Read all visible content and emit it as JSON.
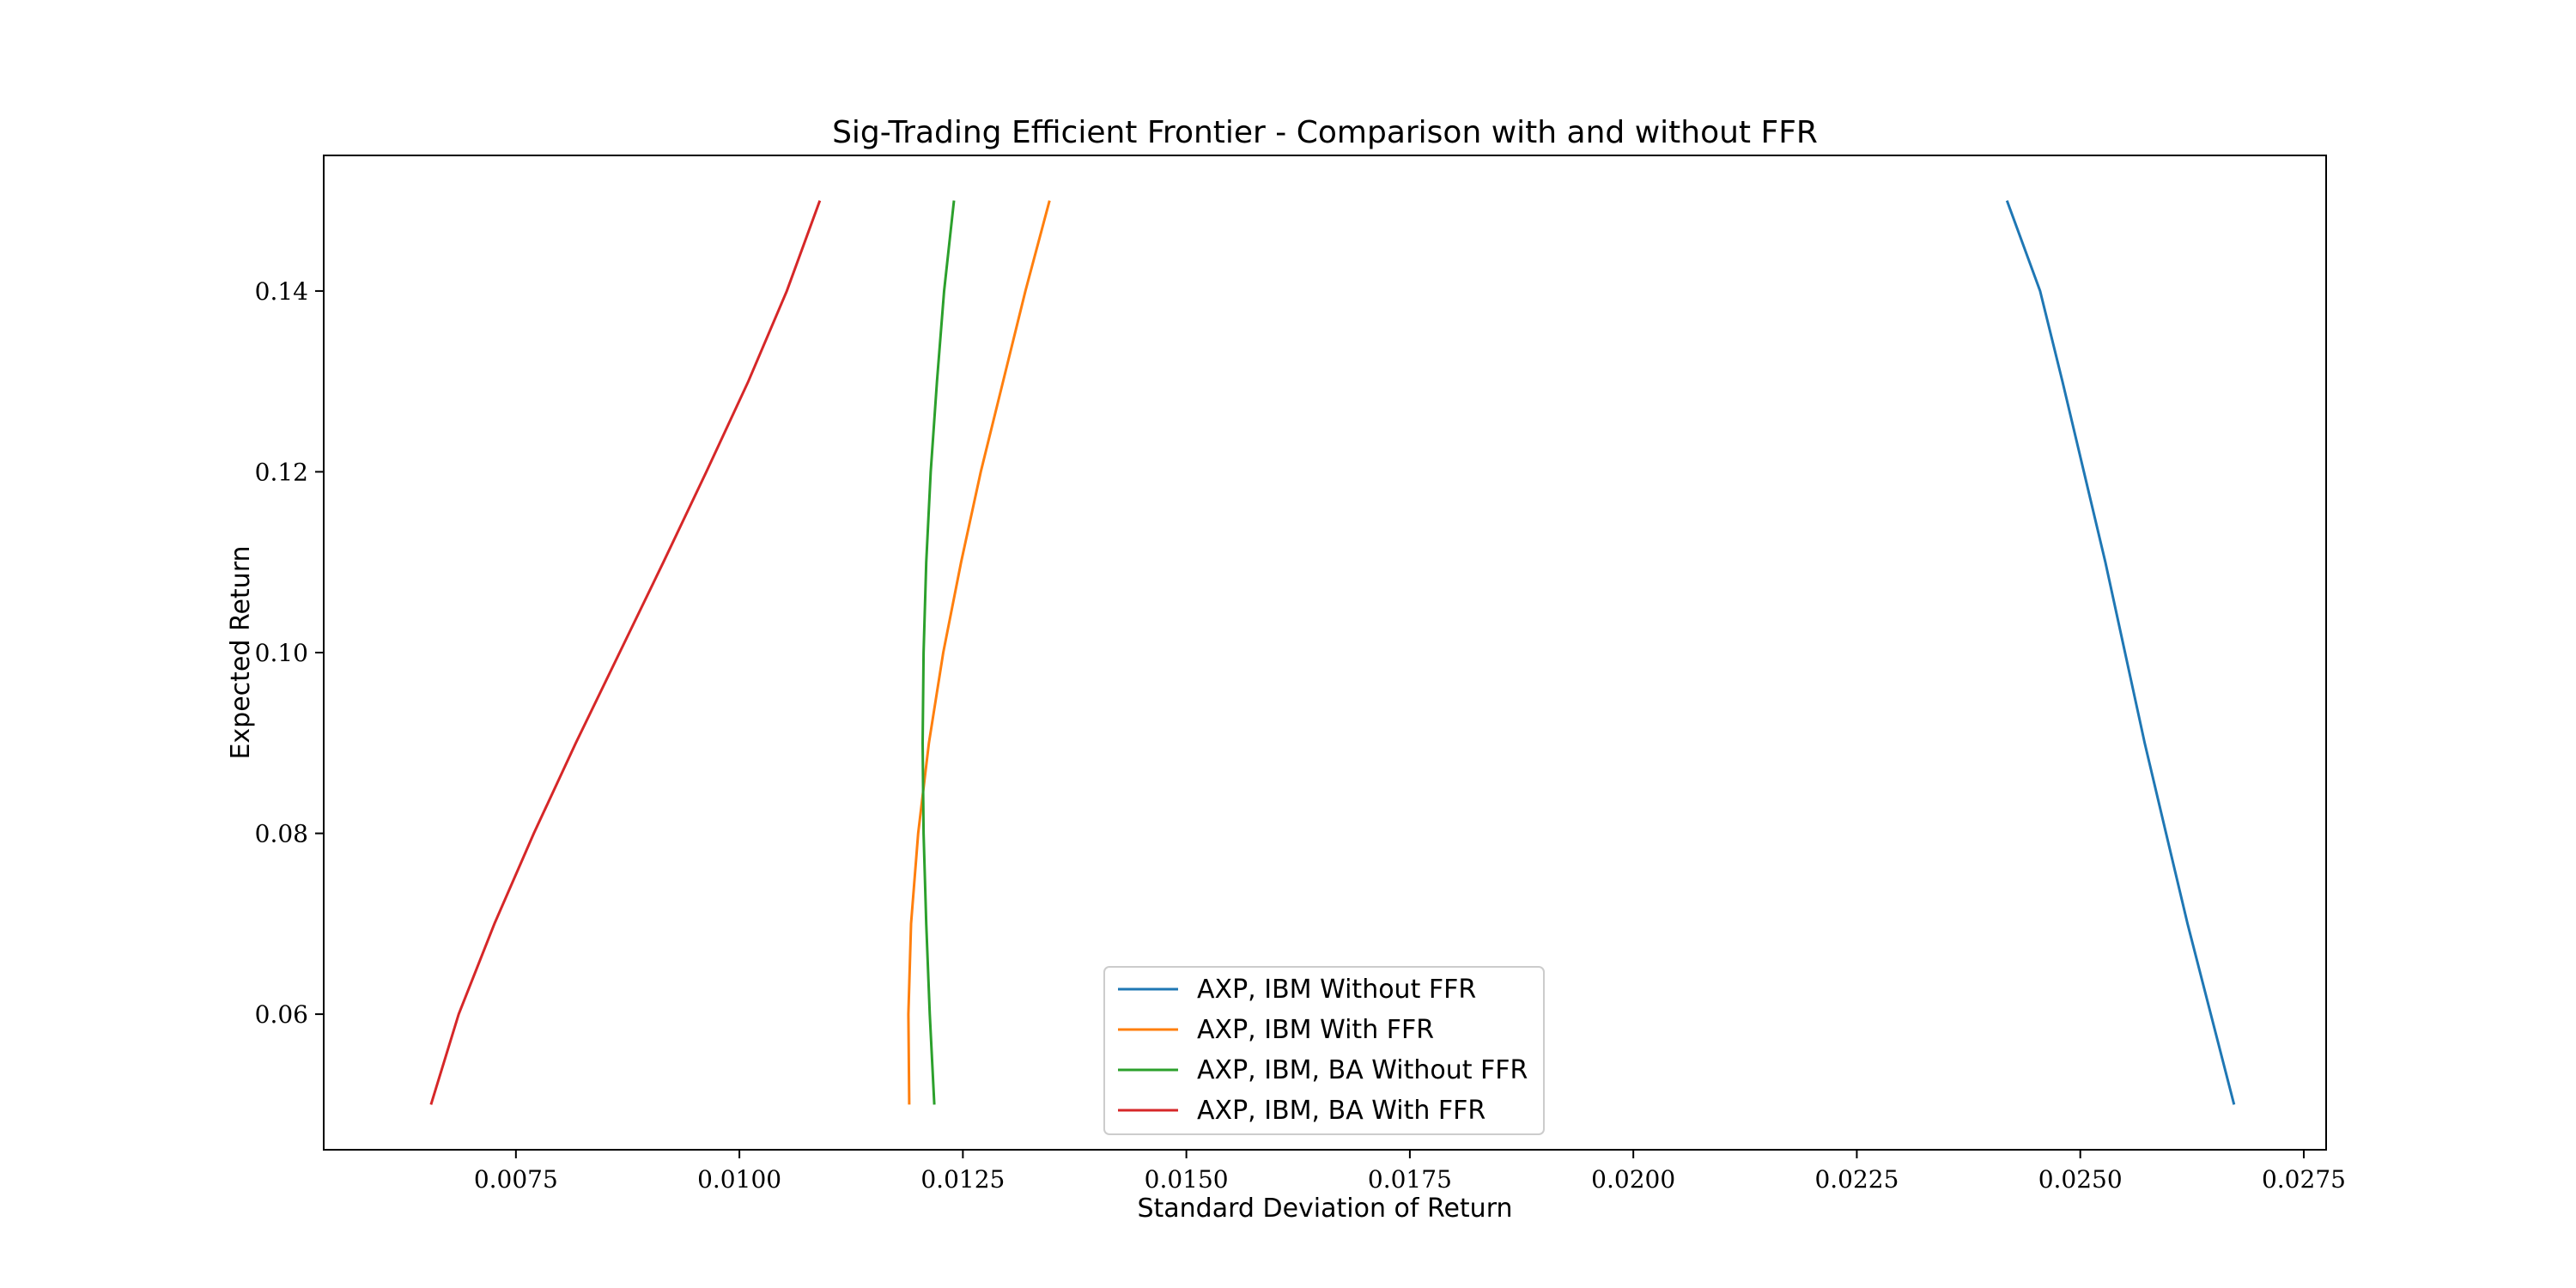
{
  "chart_data": {
    "type": "line",
    "title": "Sig-Trading Efficient Frontier - Comparison with and without FFR",
    "xlabel": "Standard Deviation of Return",
    "ylabel": "Expected Return",
    "xlim": [
      0.00535,
      0.02775
    ],
    "ylim": [
      0.045,
      0.155
    ],
    "grid": false,
    "legend_position": "lower-center",
    "xticks": [
      {
        "value": 0.0075,
        "label": "0.0075"
      },
      {
        "value": 0.01,
        "label": "0.0100"
      },
      {
        "value": 0.0125,
        "label": "0.0125"
      },
      {
        "value": 0.015,
        "label": "0.0150"
      },
      {
        "value": 0.0175,
        "label": "0.0175"
      },
      {
        "value": 0.02,
        "label": "0.0200"
      },
      {
        "value": 0.0225,
        "label": "0.0225"
      },
      {
        "value": 0.025,
        "label": "0.0250"
      },
      {
        "value": 0.0275,
        "label": "0.0275"
      }
    ],
    "yticks": [
      {
        "value": 0.06,
        "label": "0.06"
      },
      {
        "value": 0.08,
        "label": "0.08"
      },
      {
        "value": 0.1,
        "label": "0.10"
      },
      {
        "value": 0.12,
        "label": "0.12"
      },
      {
        "value": 0.14,
        "label": "0.14"
      }
    ],
    "series": [
      {
        "name": "AXP, IBM Without FFR",
        "color": "#1f77b4",
        "points": [
          [
            0.02672,
            0.05
          ],
          [
            0.02646,
            0.06
          ],
          [
            0.0262,
            0.07
          ],
          [
            0.02596,
            0.08
          ],
          [
            0.02572,
            0.09
          ],
          [
            0.0255,
            0.1
          ],
          [
            0.02528,
            0.11
          ],
          [
            0.02504,
            0.12
          ],
          [
            0.0248,
            0.13
          ],
          [
            0.02455,
            0.14
          ],
          [
            0.02418,
            0.15
          ]
        ]
      },
      {
        "name": "AXP, IBM With FFR",
        "color": "#ff7f0e",
        "points": [
          [
            0.0119,
            0.05
          ],
          [
            0.01189,
            0.06
          ],
          [
            0.01192,
            0.07
          ],
          [
            0.012,
            0.08
          ],
          [
            0.01212,
            0.09
          ],
          [
            0.01228,
            0.1
          ],
          [
            0.01248,
            0.11
          ],
          [
            0.0127,
            0.12
          ],
          [
            0.01295,
            0.13
          ],
          [
            0.0132,
            0.14
          ],
          [
            0.01347,
            0.15
          ]
        ]
      },
      {
        "name": "AXP, IBM, BA Without FFR",
        "color": "#2ca02c",
        "points": [
          [
            0.01218,
            0.05
          ],
          [
            0.01213,
            0.06
          ],
          [
            0.01209,
            0.07
          ],
          [
            0.01206,
            0.08
          ],
          [
            0.01205,
            0.09
          ],
          [
            0.01206,
            0.1
          ],
          [
            0.01209,
            0.11
          ],
          [
            0.01214,
            0.12
          ],
          [
            0.01221,
            0.13
          ],
          [
            0.01229,
            0.14
          ],
          [
            0.0124,
            0.15
          ]
        ]
      },
      {
        "name": "AXP, IBM, BA With FFR",
        "color": "#d62728",
        "points": [
          [
            0.00655,
            0.05
          ],
          [
            0.00686,
            0.06
          ],
          [
            0.00726,
            0.07
          ],
          [
            0.0077,
            0.08
          ],
          [
            0.00817,
            0.09
          ],
          [
            0.00866,
            0.1
          ],
          [
            0.00915,
            0.11
          ],
          [
            0.00963,
            0.12
          ],
          [
            0.0101,
            0.13
          ],
          [
            0.01053,
            0.14
          ],
          [
            0.0109,
            0.15
          ]
        ]
      }
    ]
  }
}
